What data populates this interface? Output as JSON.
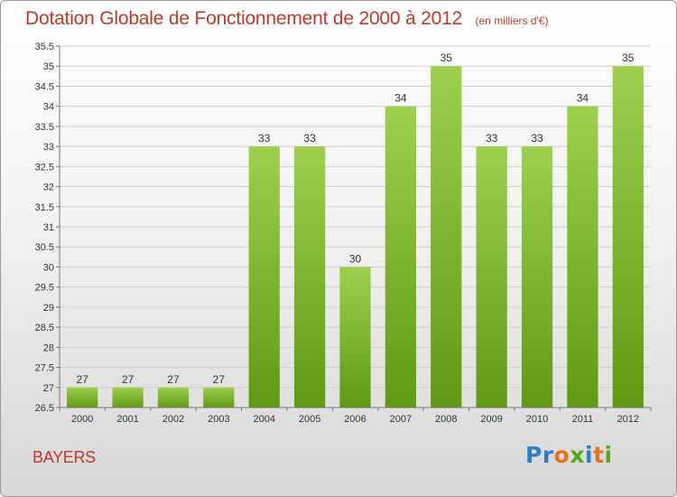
{
  "header": {
    "title": "Dotation Globale de Fonctionnement de 2000 à 2012",
    "subtitle": "(en milliers d'€)"
  },
  "footer": {
    "commune": "BAYERS",
    "logo_letters": [
      "P",
      "r",
      "o",
      "x",
      "i",
      "t",
      "i"
    ]
  },
  "colors": {
    "title": "#c0392b",
    "bar_light": "#9dd04d",
    "bar_dark": "#5f9a12",
    "logo": [
      "#2c7fc4",
      "#2c7fc4",
      "#e8731c",
      "#5aa51f",
      "#2c7fc4",
      "#e8731c",
      "#5aa51f"
    ]
  },
  "chart_data": {
    "type": "bar",
    "title": "Dotation Globale de Fonctionnement de 2000 à 2012",
    "subtitle": "(en milliers d'€)",
    "categories": [
      "2000",
      "2001",
      "2002",
      "2003",
      "2004",
      "2005",
      "2006",
      "2007",
      "2008",
      "2009",
      "2010",
      "2011",
      "2012"
    ],
    "values": [
      27,
      27,
      27,
      27,
      33,
      33,
      30,
      34,
      35,
      33,
      33,
      34,
      35
    ],
    "ylim": [
      26.5,
      35.5
    ],
    "yticks": [
      "26.5",
      "27",
      "27.5",
      "28",
      "28.5",
      "29",
      "29.5",
      "30",
      "30.5",
      "31",
      "31.5",
      "32",
      "32.5",
      "33",
      "33.5",
      "34",
      "34.5",
      "35",
      "35.5"
    ],
    "grid": true,
    "data_labels": true
  }
}
